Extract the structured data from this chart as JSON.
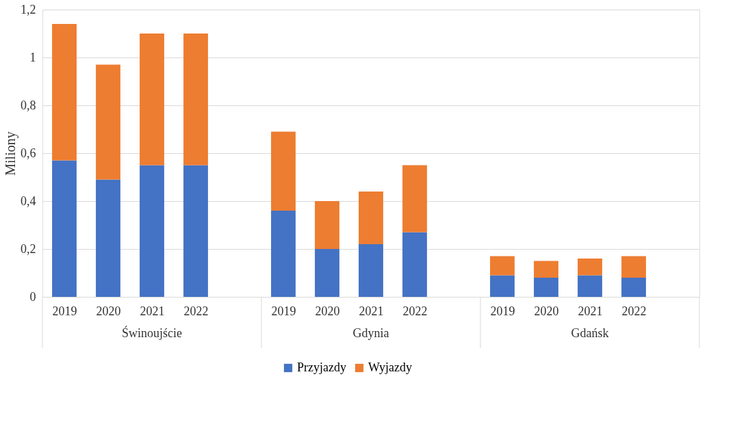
{
  "chart_data": {
    "type": "bar",
    "stacked": true,
    "ylabel": "Miliony",
    "categories": [
      "2019",
      "2020",
      "2021",
      "2022",
      null,
      "2019",
      "2020",
      "2021",
      "2022",
      null,
      "2019",
      "2020",
      "2021",
      "2022",
      null
    ],
    "series": [
      {
        "name": "Przyjazdy",
        "color": "#4472c4",
        "values": [
          0.57,
          0.49,
          0.55,
          0.55,
          null,
          0.36,
          0.2,
          0.22,
          0.27,
          null,
          0.09,
          0.08,
          0.09,
          0.08,
          null
        ]
      },
      {
        "name": "Wyjazdy",
        "color": "#ed7d31",
        "values": [
          0.57,
          0.48,
          0.55,
          0.55,
          null,
          0.33,
          0.2,
          0.22,
          0.28,
          null,
          0.08,
          0.07,
          0.07,
          0.09,
          null
        ]
      }
    ],
    "annotations": [
      "Świnoujście",
      "Gdynia",
      "Gdańsk"
    ],
    "ylim": [
      0,
      1.2
    ],
    "yticks": [
      0,
      {
        "value": 0.2,
        "label": "0,2"
      },
      {
        "value": 0.4,
        "label": "0,4"
      },
      {
        "value": 0.6,
        "label": "0,6"
      },
      {
        "value": 0.8,
        "label": "0,8"
      },
      1,
      {
        "value": 1.2,
        "label": "1,2"
      }
    ],
    "grid": "y",
    "legend": "bottom"
  }
}
